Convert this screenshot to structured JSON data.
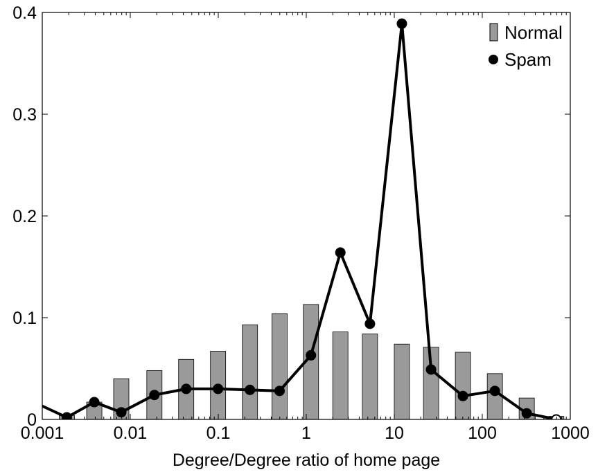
{
  "chart_data": {
    "type": "bar",
    "title": "",
    "xlabel": "Degree/Degree ratio of home page",
    "ylabel": "",
    "x_scale": "log",
    "xlim": [
      0.001,
      1000
    ],
    "ylim": [
      0,
      0.4
    ],
    "x_ticks": [
      0.001,
      0.01,
      0.1,
      1,
      10,
      100,
      1000
    ],
    "x_tick_labels": [
      "0.001",
      "0.01",
      "0.1",
      "1",
      "10",
      "100",
      "1000"
    ],
    "y_ticks": [
      0,
      0.1,
      0.2,
      0.3,
      0.4
    ],
    "y_tick_labels": [
      "0",
      "0.1",
      "0.2",
      "0.3",
      "0.4"
    ],
    "grid": false,
    "legend_position": "top-right",
    "x": [
      0.00095,
      0.0019,
      0.0039,
      0.0079,
      0.0188,
      0.0432,
      0.0994,
      0.229,
      0.497,
      1.13,
      2.44,
      5.29,
      12.2,
      26.2,
      60.3,
      139,
      320,
      693
    ],
    "series": [
      {
        "name": "Normal",
        "type": "bar",
        "color": "#9a9a9a",
        "values": [
          null,
          0.004,
          0.017,
          0.04,
          0.048,
          0.059,
          0.067,
          0.093,
          0.104,
          0.113,
          0.086,
          0.084,
          0.074,
          0.071,
          0.066,
          0.045,
          0.021,
          0.003
        ]
      },
      {
        "name": "Spam",
        "type": "line",
        "color": "#000000",
        "values": [
          0.014,
          0.002,
          0.017,
          0.007,
          0.024,
          0.03,
          0.03,
          0.029,
          0.028,
          0.063,
          0.164,
          0.094,
          0.389,
          0.049,
          0.023,
          0.028,
          0.006,
          0.0
        ]
      }
    ]
  }
}
